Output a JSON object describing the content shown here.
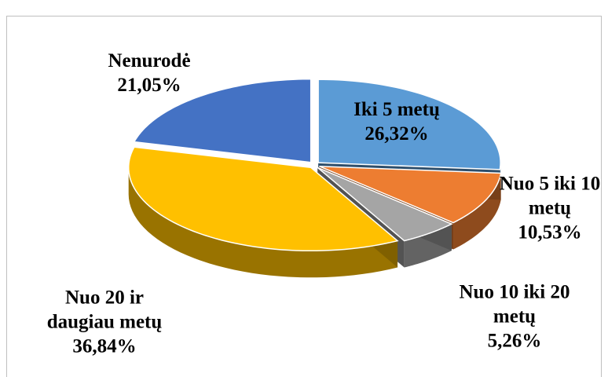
{
  "chart_data": {
    "type": "pie3d",
    "categories": [
      "Iki 5 metų",
      "Nuo 5 iki 10 metų",
      "Nuo 10 iki 20 metų",
      "Nuo 20 ir daugiau metų",
      "Nenurodė"
    ],
    "values": [
      26.32,
      10.53,
      5.26,
      36.84,
      21.05
    ],
    "value_labels": [
      "26,32%",
      "10,53%",
      "5,26%",
      "36,84%",
      "21,05%"
    ],
    "colors": [
      "#5b9bd5",
      "#ed7d31",
      "#a5a5a5",
      "#ffc000",
      "#4472c4"
    ]
  }
}
